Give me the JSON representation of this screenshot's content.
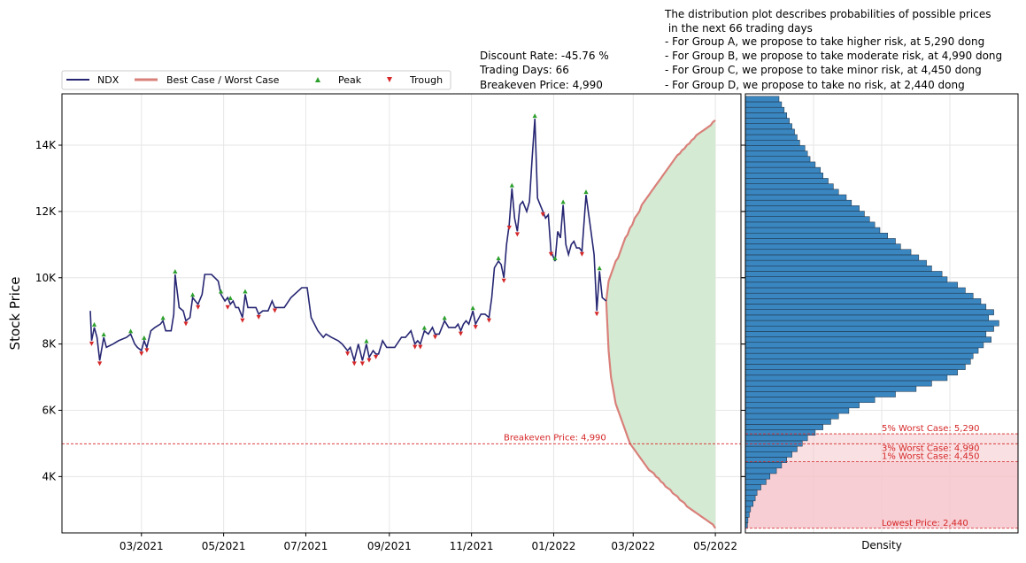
{
  "header": {
    "info_lines": [
      "Discount Rate: -45.76 %",
      "Trading Days: 66",
      "Breakeven Price: 4,990"
    ],
    "distribution_lines": [
      "The distribution plot describes probabilities of possible prices",
      " in the next 66 trading days",
      "- For Group A, we propose to take higher risk, at 5,290 dong",
      "- For Group B, we propose to take moderate risk, at 4,990 dong",
      "- For Group C, we propose to take minor risk, at 4,450 dong",
      "- For Group D, we propose to take no risk, at 2,440 dong"
    ]
  },
  "colors": {
    "price": "#262673",
    "band": "#d9807a",
    "band_fill": "#d5ead3",
    "peak": "#2ca02c",
    "trough": "#d62728",
    "hist": "#3a86c0",
    "risk_fill": "#f4c6cb",
    "grid": "#e6e6e6"
  },
  "chart_data": [
    {
      "type": "line",
      "ylabel": "Stock Price",
      "xlabel": "",
      "ylim": [
        2300,
        15550
      ],
      "xlim": [
        "2021-01-01",
        "2022-05-20"
      ],
      "yticks": [
        4000,
        6000,
        8000,
        10000,
        12000,
        14000
      ],
      "ytick_labels": [
        "4K",
        "6K",
        "8K",
        "10K",
        "12K",
        "14K"
      ],
      "xticks": [
        "2021-03-01",
        "2021-05-01",
        "2021-07-01",
        "2021-09-01",
        "2021-11-01",
        "2022-01-01",
        "2022-03-01",
        "2022-05-01"
      ],
      "xtick_labels": [
        "03/2021",
        "05/2021",
        "07/2021",
        "09/2021",
        "11/2021",
        "01/2022",
        "03/2022",
        "05/2022"
      ],
      "legend": {
        "placement": "top-left",
        "entries": [
          "NDX",
          "Best Case / Worst Case",
          "Peak",
          "Trough"
        ]
      },
      "grid": true,
      "breakeven": {
        "value": 4990,
        "label": "Breakeven Price: 4,990"
      },
      "series": [
        {
          "name": "NDX",
          "points": [
            [
              "2021-01-22",
              9000
            ],
            [
              "2021-01-23",
              8100
            ],
            [
              "2021-01-25",
              8500
            ],
            [
              "2021-01-27",
              8200
            ],
            [
              "2021-01-29",
              7500
            ],
            [
              "2021-02-01",
              8200
            ],
            [
              "2021-02-03",
              7900
            ],
            [
              "2021-02-08",
              8000
            ],
            [
              "2021-02-12",
              8100
            ],
            [
              "2021-02-18",
              8200
            ],
            [
              "2021-02-21",
              8300
            ],
            [
              "2021-02-24",
              8000
            ],
            [
              "2021-02-26",
              7900
            ],
            [
              "2021-03-01",
              7800
            ],
            [
              "2021-03-03",
              8100
            ],
            [
              "2021-03-05",
              7900
            ],
            [
              "2021-03-08",
              8400
            ],
            [
              "2021-03-11",
              8500
            ],
            [
              "2021-03-15",
              8600
            ],
            [
              "2021-03-17",
              8700
            ],
            [
              "2021-03-19",
              8400
            ],
            [
              "2021-03-23",
              8400
            ],
            [
              "2021-03-25",
              8900
            ],
            [
              "2021-03-26",
              10100
            ],
            [
              "2021-03-29",
              9100
            ],
            [
              "2021-04-01",
              9000
            ],
            [
              "2021-04-03",
              8700
            ],
            [
              "2021-04-06",
              8800
            ],
            [
              "2021-04-08",
              9400
            ],
            [
              "2021-04-12",
              9200
            ],
            [
              "2021-04-15",
              9500
            ],
            [
              "2021-04-17",
              10100
            ],
            [
              "2021-04-22",
              10100
            ],
            [
              "2021-04-27",
              9900
            ],
            [
              "2021-04-29",
              9500
            ],
            [
              "2021-05-02",
              9300
            ],
            [
              "2021-05-04",
              9400
            ],
            [
              "2021-05-06",
              9200
            ],
            [
              "2021-05-08",
              9300
            ],
            [
              "2021-05-10",
              9100
            ],
            [
              "2021-05-12",
              9100
            ],
            [
              "2021-05-15",
              8800
            ],
            [
              "2021-05-17",
              9500
            ],
            [
              "2021-05-19",
              9100
            ],
            [
              "2021-05-25",
              9100
            ],
            [
              "2021-05-27",
              8900
            ],
            [
              "2021-05-30",
              9000
            ],
            [
              "2021-06-03",
              9000
            ],
            [
              "2021-06-06",
              9300
            ],
            [
              "2021-06-08",
              9100
            ],
            [
              "2021-06-15",
              9100
            ],
            [
              "2021-06-20",
              9400
            ],
            [
              "2021-06-28",
              9700
            ],
            [
              "2021-07-02",
              9700
            ],
            [
              "2021-07-05",
              8800
            ],
            [
              "2021-07-10",
              8400
            ],
            [
              "2021-07-14",
              8200
            ],
            [
              "2021-07-16",
              8300
            ],
            [
              "2021-07-20",
              8200
            ],
            [
              "2021-07-25",
              8100
            ],
            [
              "2021-07-28",
              8000
            ],
            [
              "2021-08-01",
              7800
            ],
            [
              "2021-08-03",
              7900
            ],
            [
              "2021-08-06",
              7500
            ],
            [
              "2021-08-09",
              8000
            ],
            [
              "2021-08-12",
              7500
            ],
            [
              "2021-08-15",
              8000
            ],
            [
              "2021-08-17",
              7600
            ],
            [
              "2021-08-20",
              7800
            ],
            [
              "2021-08-22",
              7700
            ],
            [
              "2021-08-24",
              7700
            ],
            [
              "2021-08-27",
              8100
            ],
            [
              "2021-08-30",
              7900
            ],
            [
              "2021-09-05",
              7900
            ],
            [
              "2021-09-10",
              8200
            ],
            [
              "2021-09-13",
              8200
            ],
            [
              "2021-09-17",
              8400
            ],
            [
              "2021-09-20",
              8000
            ],
            [
              "2021-09-22",
              8100
            ],
            [
              "2021-09-24",
              8000
            ],
            [
              "2021-09-27",
              8400
            ],
            [
              "2021-09-30",
              8300
            ],
            [
              "2021-10-03",
              8500
            ],
            [
              "2021-10-05",
              8300
            ],
            [
              "2021-10-08",
              8300
            ],
            [
              "2021-10-12",
              8700
            ],
            [
              "2021-10-15",
              8500
            ],
            [
              "2021-10-20",
              8500
            ],
            [
              "2021-10-22",
              8600
            ],
            [
              "2021-10-24",
              8400
            ],
            [
              "2021-10-26",
              8600
            ],
            [
              "2021-10-28",
              8700
            ],
            [
              "2021-10-30",
              8600
            ],
            [
              "2021-11-02",
              9000
            ],
            [
              "2021-11-04",
              8600
            ],
            [
              "2021-11-08",
              8900
            ],
            [
              "2021-11-11",
              8900
            ],
            [
              "2021-11-14",
              8800
            ],
            [
              "2021-11-16",
              9400
            ],
            [
              "2021-11-18",
              10300
            ],
            [
              "2021-11-21",
              10500
            ],
            [
              "2021-11-23",
              10400
            ],
            [
              "2021-11-25",
              10000
            ],
            [
              "2021-11-27",
              11000
            ],
            [
              "2021-11-29",
              11600
            ],
            [
              "2021-12-01",
              12700
            ],
            [
              "2021-12-03",
              11800
            ],
            [
              "2021-12-05",
              11400
            ],
            [
              "2021-12-07",
              12200
            ],
            [
              "2021-12-09",
              12300
            ],
            [
              "2021-12-12",
              12000
            ],
            [
              "2021-12-14",
              12300
            ],
            [
              "2021-12-16",
              13600
            ],
            [
              "2021-12-18",
              14800
            ],
            [
              "2021-12-20",
              12400
            ],
            [
              "2021-12-22",
              12200
            ],
            [
              "2021-12-24",
              12000
            ],
            [
              "2021-12-26",
              11800
            ],
            [
              "2021-12-28",
              11900
            ],
            [
              "2021-12-30",
              10800
            ],
            [
              "2022-01-02",
              10500
            ],
            [
              "2022-01-04",
              11400
            ],
            [
              "2022-01-06",
              11200
            ],
            [
              "2022-01-08",
              12200
            ],
            [
              "2022-01-10",
              11000
            ],
            [
              "2022-01-12",
              10700
            ],
            [
              "2022-01-14",
              11000
            ],
            [
              "2022-01-16",
              11100
            ],
            [
              "2022-01-18",
              10900
            ],
            [
              "2022-01-20",
              10900
            ],
            [
              "2022-01-22",
              10800
            ],
            [
              "2022-01-25",
              12500
            ],
            [
              "2022-01-28",
              11600
            ],
            [
              "2022-01-31",
              10700
            ],
            [
              "2022-02-02",
              9000
            ],
            [
              "2022-02-04",
              10200
            ],
            [
              "2022-02-06",
              9400
            ],
            [
              "2022-02-09",
              9300
            ]
          ]
        }
      ],
      "peaks": [
        [
          "2021-01-25",
          8500
        ],
        [
          "2021-02-01",
          8200
        ],
        [
          "2021-02-21",
          8300
        ],
        [
          "2021-03-03",
          8100
        ],
        [
          "2021-03-17",
          8700
        ],
        [
          "2021-03-26",
          10100
        ],
        [
          "2021-04-08",
          9400
        ],
        [
          "2021-04-29",
          9500
        ],
        [
          "2021-05-06",
          9300
        ],
        [
          "2021-05-17",
          9500
        ],
        [
          "2021-08-15",
          8000
        ],
        [
          "2021-09-27",
          8400
        ],
        [
          "2021-10-12",
          8700
        ],
        [
          "2021-11-02",
          9000
        ],
        [
          "2021-11-21",
          10500
        ],
        [
          "2021-12-01",
          12700
        ],
        [
          "2021-12-18",
          14800
        ],
        [
          "2022-01-02",
          10500
        ],
        [
          "2022-01-08",
          12200
        ],
        [
          "2022-01-25",
          12500
        ],
        [
          "2022-02-04",
          10200
        ]
      ],
      "troughs": [
        [
          "2021-01-23",
          8100
        ],
        [
          "2021-01-29",
          7500
        ],
        [
          "2021-03-01",
          7800
        ],
        [
          "2021-03-05",
          7900
        ],
        [
          "2021-04-03",
          8700
        ],
        [
          "2021-04-12",
          9200
        ],
        [
          "2021-05-04",
          9200
        ],
        [
          "2021-05-15",
          8800
        ],
        [
          "2021-05-27",
          8900
        ],
        [
          "2021-06-08",
          9100
        ],
        [
          "2021-08-01",
          7800
        ],
        [
          "2021-08-06",
          7500
        ],
        [
          "2021-08-12",
          7500
        ],
        [
          "2021-08-17",
          7600
        ],
        [
          "2021-08-22",
          7700
        ],
        [
          "2021-09-20",
          8000
        ],
        [
          "2021-09-24",
          8000
        ],
        [
          "2021-10-05",
          8300
        ],
        [
          "2021-10-24",
          8400
        ],
        [
          "2021-11-04",
          8600
        ],
        [
          "2021-11-14",
          8800
        ],
        [
          "2021-11-25",
          10000
        ],
        [
          "2021-11-29",
          11600
        ],
        [
          "2021-12-05",
          11400
        ],
        [
          "2021-12-24",
          12000
        ],
        [
          "2021-12-30",
          10800
        ],
        [
          "2022-01-22",
          10800
        ],
        [
          "2022-02-02",
          9000
        ]
      ],
      "best_worst_case": {
        "start": "2022-02-09",
        "end": "2022-05-01",
        "best": [
          9300,
          9900,
          10100,
          10300,
          10500,
          10600,
          10800,
          11000,
          11200,
          11300,
          11500,
          11600,
          11800,
          11900,
          12000,
          12200,
          12300,
          12400,
          12500,
          12600,
          12700,
          12800,
          12900,
          13000,
          13100,
          13200,
          13300,
          13400,
          13500,
          13600,
          13700,
          13750,
          13850,
          13900,
          14000,
          14050,
          14150,
          14200,
          14300,
          14350,
          14400,
          14450,
          14500,
          14550,
          14600,
          14700,
          14750
        ],
        "worst": [
          9300,
          7800,
          7000,
          6600,
          6200,
          6000,
          5800,
          5600,
          5400,
          5200,
          5000,
          4900,
          4800,
          4700,
          4600,
          4500,
          4400,
          4300,
          4200,
          4150,
          4100,
          4000,
          3950,
          3850,
          3800,
          3700,
          3650,
          3600,
          3500,
          3450,
          3400,
          3300,
          3250,
          3200,
          3100,
          3050,
          3000,
          2950,
          2900,
          2850,
          2800,
          2750,
          2700,
          2650,
          2600,
          2550,
          2440
        ]
      }
    },
    {
      "type": "bar",
      "orientation": "horizontal",
      "xlabel": "Density",
      "ylim": [
        2300,
        15550
      ],
      "bin_start": 2440,
      "bin_width": 165,
      "values": [
        0.008,
        0.01,
        0.015,
        0.02,
        0.03,
        0.038,
        0.045,
        0.06,
        0.08,
        0.095,
        0.12,
        0.14,
        0.16,
        0.18,
        0.2,
        0.22,
        0.24,
        0.27,
        0.3,
        0.33,
        0.36,
        0.4,
        0.44,
        0.5,
        0.58,
        0.66,
        0.72,
        0.78,
        0.82,
        0.85,
        0.87,
        0.88,
        0.9,
        0.92,
        0.95,
        0.93,
        0.96,
        0.98,
        0.94,
        0.96,
        0.93,
        0.91,
        0.88,
        0.85,
        0.82,
        0.78,
        0.76,
        0.72,
        0.7,
        0.67,
        0.64,
        0.6,
        0.58,
        0.55,
        0.52,
        0.5,
        0.48,
        0.46,
        0.44,
        0.41,
        0.39,
        0.36,
        0.34,
        0.32,
        0.3,
        0.29,
        0.27,
        0.25,
        0.24,
        0.23,
        0.21,
        0.2,
        0.19,
        0.18,
        0.17,
        0.16,
        0.15,
        0.14,
        0.13,
        0.12,
        0.11,
        0.1
      ],
      "risk_levels": [
        {
          "label": "5% Worst Case: 5,290",
          "value": 5290
        },
        {
          "label": "3% Worst Case: 4,990",
          "value": 4990
        },
        {
          "label": "1% Worst Case: 4,450",
          "value": 4450
        },
        {
          "label": "Lowest Price: 2,440",
          "value": 2440
        }
      ]
    }
  ]
}
